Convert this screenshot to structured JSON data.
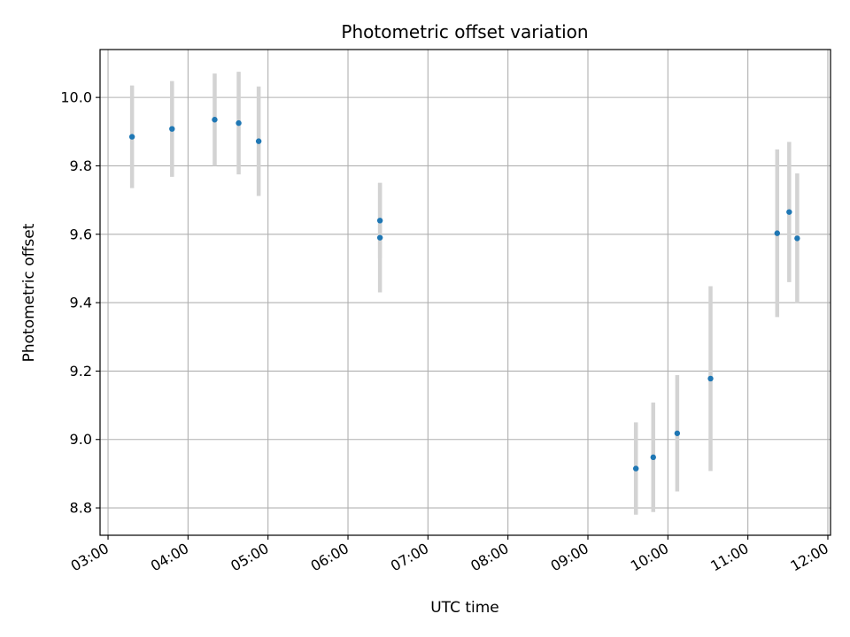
{
  "chart_data": {
    "type": "scatter",
    "title": "Photometric offset variation",
    "xlabel": "UTC time",
    "ylabel": "Photometric offset",
    "x_ticks": [
      "03:00",
      "04:00",
      "05:00",
      "06:00",
      "07:00",
      "08:00",
      "09:00",
      "10:00",
      "11:00",
      "12:00"
    ],
    "y_ticks": [
      "8.8",
      "9.0",
      "9.2",
      "9.4",
      "9.6",
      "9.8",
      "10.0"
    ],
    "xlim": [
      "02:54",
      "12:02"
    ],
    "ylim": [
      8.72,
      10.14
    ],
    "grid": true,
    "errorbar_color": "#d3d3d3",
    "point_color": "#1f77b4",
    "series": [
      {
        "points": [
          {
            "x": "03:18",
            "y": 9.885,
            "err": 0.15
          },
          {
            "x": "03:48",
            "y": 9.908,
            "err": 0.14
          },
          {
            "x": "04:20",
            "y": 9.935,
            "err": 0.135
          },
          {
            "x": "04:38",
            "y": 9.925,
            "err": 0.15
          },
          {
            "x": "04:53",
            "y": 9.872,
            "err": 0.16
          },
          {
            "x": "06:24",
            "y": 9.59,
            "err": 0.16
          },
          {
            "x": "06:24",
            "y": 9.64,
            "err": 0.11
          },
          {
            "x": "09:36",
            "y": 8.915,
            "err": 0.135
          },
          {
            "x": "09:49",
            "y": 8.948,
            "err": 0.16
          },
          {
            "x": "10:07",
            "y": 9.018,
            "err": 0.17
          },
          {
            "x": "10:32",
            "y": 9.178,
            "err": 0.27
          },
          {
            "x": "11:22",
            "y": 9.603,
            "err": 0.245
          },
          {
            "x": "11:31",
            "y": 9.665,
            "err": 0.205
          },
          {
            "x": "11:37",
            "y": 9.588,
            "err": 0.19
          }
        ]
      }
    ]
  }
}
